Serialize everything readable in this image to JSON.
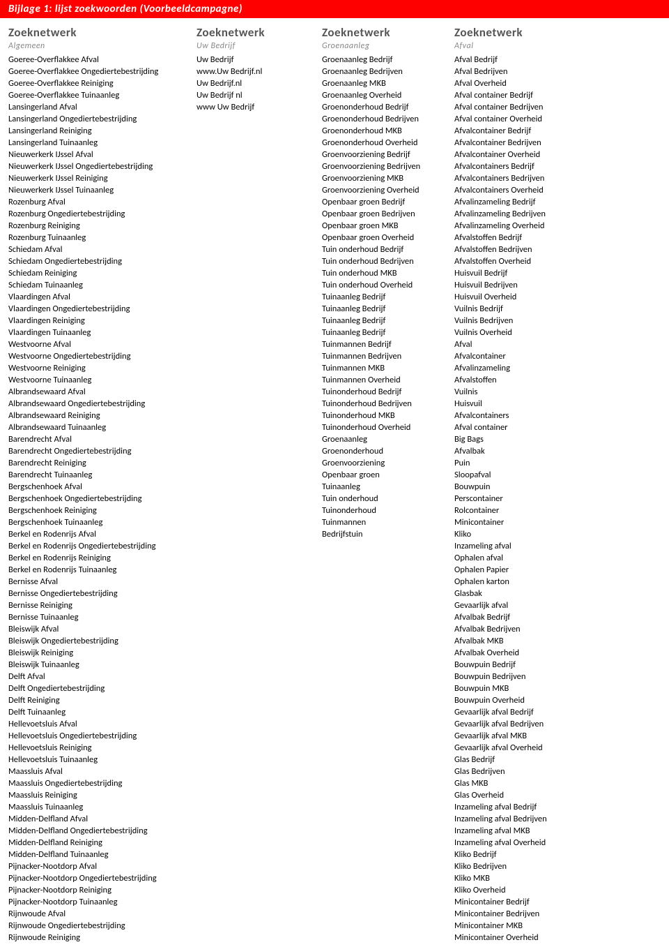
{
  "header": "Bijlage 1: lijst zoekwoorden (Voorbeeldcampagne)",
  "columns": [
    {
      "title": "Zoeknetwerk",
      "subtitle": "Algemeen",
      "items": [
        "Goeree-Overflakkee Afval",
        "Goeree-Overflakkee Ongediertebestrijding",
        "Goeree-Overflakkee Reiniging",
        "Goeree-Overflakkee Tuinaanleg",
        "Lansingerland Afval",
        "Lansingerland Ongediertebestrijding",
        "Lansingerland Reiniging",
        "Lansingerland Tuinaanleg",
        "Nieuwerkerk IJssel Afval",
        "Nieuwerkerk IJssel Ongediertebestrijding",
        "Nieuwerkerk IJssel Reiniging",
        "Nieuwerkerk IJssel Tuinaanleg",
        "Rozenburg Afval",
        "Rozenburg Ongediertebestrijding",
        "Rozenburg Reiniging",
        "Rozenburg Tuinaanleg",
        "Schiedam Afval",
        "Schiedam Ongediertebestrijding",
        "Schiedam Reiniging",
        "Schiedam Tuinaanleg",
        "Vlaardingen Afval",
        "Vlaardingen Ongediertebestrijding",
        "Vlaardingen Reiniging",
        "Vlaardingen Tuinaanleg",
        "Westvoorne Afval",
        "Westvoorne Ongediertebestrijding",
        "Westvoorne Reiniging",
        "Westvoorne Tuinaanleg",
        "Albrandsewaard Afval",
        "Albrandsewaard Ongediertebestrijding",
        "Albrandsewaard Reiniging",
        "Albrandsewaard Tuinaanleg",
        "Barendrecht Afval",
        "Barendrecht Ongediertebestrijding",
        "Barendrecht Reiniging",
        "Barendrecht Tuinaanleg",
        "Bergschenhoek Afval",
        "Bergschenhoek Ongediertebestrijding",
        "Bergschenhoek Reiniging",
        "Bergschenhoek Tuinaanleg",
        "Berkel en Rodenrijs Afval",
        "Berkel en Rodenrijs Ongediertebestrijding",
        "Berkel en Rodenrijs Reiniging",
        "Berkel en Rodenrijs Tuinaanleg",
        "Bernisse Afval",
        "Bernisse Ongediertebestrijding",
        "Bernisse Reiniging",
        "Bernisse Tuinaanleg",
        "Bleiswijk Afval",
        "Bleiswijk Ongediertebestrijding",
        "Bleiswijk Reiniging",
        "Bleiswijk Tuinaanleg",
        "Delft Afval",
        "Delft Ongediertebestrijding",
        "Delft Reiniging",
        "Delft Tuinaanleg",
        "Hellevoetsluis Afval",
        "Hellevoetsluis Ongediertebestrijding",
        "Hellevoetsluis Reiniging",
        "Hellevoetsluis Tuinaanleg",
        "Maassluis Afval",
        "Maassluis Ongediertebestrijding",
        "Maassluis Reiniging",
        "Maassluis Tuinaanleg",
        "Midden-Delfland Afval",
        "Midden-Delfland Ongediertebestrijding",
        "Midden-Delfland Reiniging",
        "Midden-Delfland Tuinaanleg",
        "Pijnacker-Nootdorp Afval",
        "Pijnacker-Nootdorp Ongediertebestrijding",
        "Pijnacker-Nootdorp Reiniging",
        "Pijnacker-Nootdorp Tuinaanleg",
        "Rijnwoude Afval",
        "Rijnwoude Ongediertebestrijding",
        "Rijnwoude Reiniging"
      ]
    },
    {
      "title": "Zoeknetwerk",
      "subtitle": "Uw Bedrijf",
      "items": [
        "Uw Bedrijf",
        "www.Uw Bedrijf.nl",
        "Uw Bedrijf.nl",
        "Uw Bedrijf nl",
        "www Uw Bedrijf"
      ]
    },
    {
      "title": "Zoeknetwerk",
      "subtitle": "Groenaanleg",
      "items": [
        "Groenaanleg Bedrijf",
        "Groenaanleg Bedrijven",
        "Groenaanleg MKB",
        "Groenaanleg Overheid",
        "Groenonderhoud Bedrijf",
        "Groenonderhoud Bedrijven",
        "Groenonderhoud MKB",
        "Groenonderhoud Overheid",
        "Groenvoorziening Bedrijf",
        "Groenvoorziening Bedrijven",
        "Groenvoorziening MKB",
        "Groenvoorziening Overheid",
        "Openbaar groen Bedrijf",
        "Openbaar groen Bedrijven",
        "Openbaar groen MKB",
        "Openbaar groen Overheid",
        "Tuin onderhoud Bedrijf",
        "Tuin onderhoud Bedrijven",
        "Tuin onderhoud MKB",
        "Tuin onderhoud Overheid",
        "Tuinaanleg Bedrijf",
        "Tuinaanleg Bedrijf",
        "Tuinaanleg Bedrijf",
        "Tuinaanleg Bedrijf",
        "Tuinmannen Bedrijf",
        "Tuinmannen Bedrijven",
        "Tuinmannen MKB",
        "Tuinmannen Overheid",
        "Tuinonderhoud Bedrijf",
        "Tuinonderhoud Bedrijven",
        "Tuinonderhoud MKB",
        "Tuinonderhoud Overheid",
        "Groenaanleg",
        "Groenonderhoud",
        "Groenvoorziening",
        "Openbaar groen",
        "Tuinaanleg",
        "Tuin onderhoud",
        "Tuinonderhoud",
        "Tuinmannen",
        "Bedrijfstuin"
      ]
    },
    {
      "title": "Zoeknetwerk",
      "subtitle": "Afval",
      "items": [
        "Afval Bedrijf",
        "Afval Bedrijven",
        "Afval Overheid",
        "Afval container Bedrijf",
        "Afval container Bedrijven",
        "Afval container Overheid",
        "Afvalcontainer Bedrijf",
        "Afvalcontainer Bedrijven",
        "Afvalcontainer Overheid",
        "Afvalcontainers Bedrijf",
        "Afvalcontainers Bedrijven",
        "Afvalcontainers Overheid",
        "Afvalinzameling Bedrijf",
        "Afvalinzameling Bedrijven",
        "Afvalinzameling Overheid",
        "Afvalstoffen Bedrijf",
        "Afvalstoffen Bedrijven",
        "Afvalstoffen Overheid",
        "Huisvuil Bedrijf",
        "Huisvuil Bedrijven",
        "Huisvuil Overheid",
        "Vuilnis Bedrijf",
        "Vuilnis Bedrijven",
        "Vuilnis Overheid",
        "Afval",
        "Afvalcontainer",
        "Afvalinzameling",
        "Afvalstoffen",
        "Vuilnis",
        "Huisvuil",
        "Afvalcontainers",
        "Afval container",
        "Big Bags",
        "Afvalbak",
        "Puin",
        "Sloopafval",
        "Bouwpuin",
        "Perscontainer",
        "Rolcontainer",
        "Minicontainer",
        "Kliko",
        "Inzameling afval",
        "Ophalen afval",
        "Ophalen Papier",
        "Ophalen karton",
        "Glasbak",
        "Gevaarlijk afval",
        "Afvalbak Bedrijf",
        "Afvalbak Bedrijven",
        "Afvalbak MKB",
        "Afvalbak Overheid",
        "Bouwpuin Bedrijf",
        "Bouwpuin Bedrijven",
        "Bouwpuin MKB",
        "Bouwpuin Overheid",
        "Gevaarlijk afval Bedrijf",
        "Gevaarlijk afval Bedrijven",
        "Gevaarlijk afval MKB",
        "Gevaarlijk afval Overheid",
        "Glas Bedrijf",
        "Glas Bedrijven",
        "Glas MKB",
        "Glas Overheid",
        "Inzameling afval Bedrijf",
        "Inzameling afval Bedrijven",
        "Inzameling afval MKB",
        "Inzameling afval Overheid",
        "Kliko Bedrijf",
        "Kliko Bedrijven",
        "Kliko MKB",
        "Kliko Overheid",
        "Minicontainer Bedrijf",
        "Minicontainer Bedrijven",
        "Minicontainer MKB",
        "Minicontainer Overheid"
      ]
    }
  ]
}
